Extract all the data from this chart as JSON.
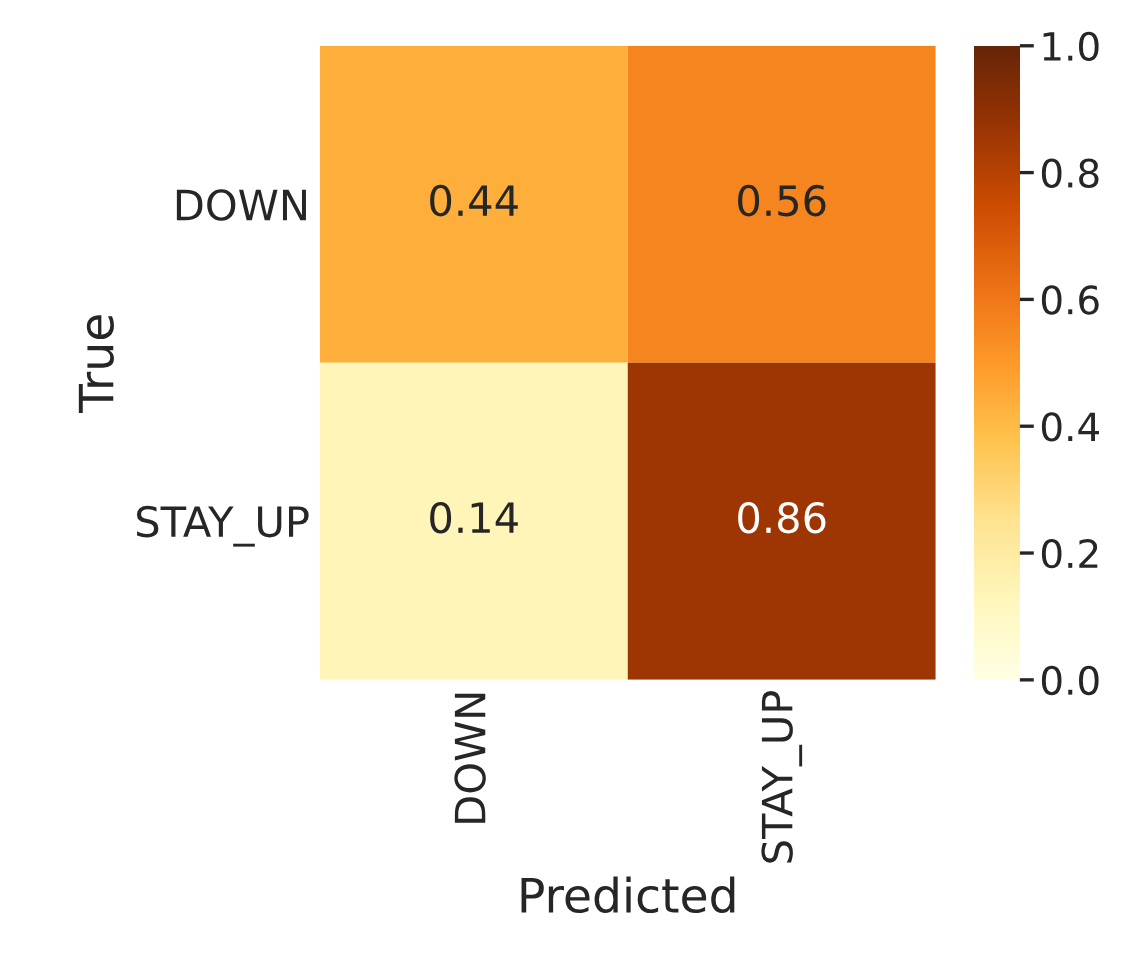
{
  "chart_data": {
    "type": "heatmap",
    "xlabel": "Predicted",
    "ylabel": "True",
    "categories": [
      "DOWN",
      "STAY_UP"
    ],
    "y_categories": [
      "DOWN",
      "STAY_UP"
    ],
    "cells": [
      [
        0.44,
        0.56
      ],
      [
        0.14,
        0.86
      ]
    ],
    "data_labels": true,
    "clim": [
      0,
      1
    ],
    "cticks": [
      {
        "value": 0,
        "label": "0.0"
      },
      0.2,
      0.4,
      0.6,
      0.8,
      {
        "value": 1,
        "label": "1.0"
      }
    ]
  }
}
